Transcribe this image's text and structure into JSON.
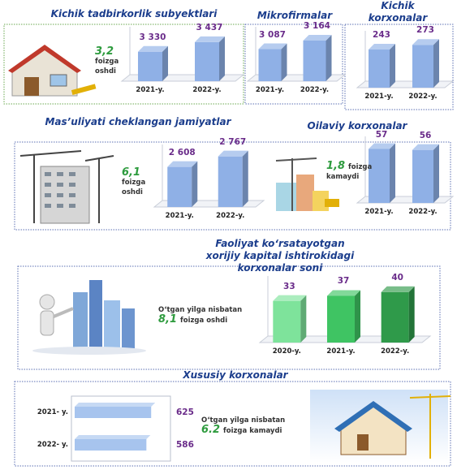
{
  "chart_data": [
    {
      "type": "bar",
      "title": "Kichik tadbirkorlik subyektlari",
      "categories": [
        "2021-y.",
        "2022-y."
      ],
      "values": [
        3330,
        3437
      ],
      "value_labels": [
        "3 330",
        "3 437"
      ],
      "color": "#8fb0e6",
      "ylim": [
        3000,
        3500
      ],
      "change": "3,2",
      "change_note": "foizga oshdi"
    },
    {
      "type": "bar",
      "title": "Mikrofirmalar",
      "categories": [
        "2021-y.",
        "2022-y."
      ],
      "values": [
        3087,
        3164
      ],
      "value_labels": [
        "3 087",
        "3 164"
      ],
      "color": "#8fb0e6",
      "ylim": [
        2800,
        3200
      ]
    },
    {
      "type": "bar",
      "title": "Kichik\nkorxonalar",
      "categories": [
        "2021-y.",
        "2022-y."
      ],
      "values": [
        243,
        273
      ],
      "color": "#8fb0e6",
      "ylim": [
        0,
        300
      ]
    },
    {
      "type": "bar",
      "title": "Mas’uliyati cheklangan jamiyatlar",
      "categories": [
        "2021-y.",
        "2022-y."
      ],
      "values": [
        2608,
        2767
      ],
      "value_labels": [
        "2 608",
        "2 767"
      ],
      "color": "#8fb0e6",
      "ylim": [
        2000,
        2800
      ],
      "change": "6,1",
      "change_note": "foizga oshdi"
    },
    {
      "type": "bar",
      "title": "Oilaviy korxonalar",
      "categories": [
        "2021-y.",
        "2022-y."
      ],
      "values": [
        57,
        56
      ],
      "color": "#8fb0e6",
      "ylim": [
        0,
        60
      ],
      "change": "1,8",
      "change_note": "foizga kamaydi"
    },
    {
      "type": "bar",
      "title": "Faoliyat ko‘rsatayotgan\nxorijiy kapital ishtirokidagi korxonalar soni",
      "categories": [
        "2020-y.",
        "2021-y.",
        "2022-y."
      ],
      "values": [
        33,
        37,
        40
      ],
      "colors": [
        "#7ee39b",
        "#3fc463",
        "#2f9a4a"
      ],
      "ylim": [
        0,
        45
      ],
      "lead": "O‘tgan yilga nisbatan",
      "change": "8,1",
      "change_note": "foizga oshdi"
    },
    {
      "type": "barh",
      "title": "Xususiy korxonalar",
      "categories": [
        "2021- y.",
        "2022- y."
      ],
      "values": [
        625,
        586
      ],
      "color": "#a7c4ee",
      "xlim": [
        0,
        650
      ],
      "lead": "O‘tgan yilga nisbatan",
      "change": "6.2",
      "change_note": "foizga kamaydi"
    }
  ]
}
